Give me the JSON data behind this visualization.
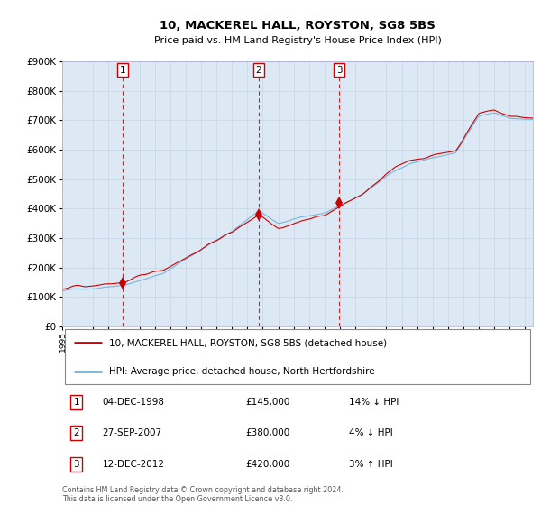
{
  "title": "10, MACKEREL HALL, ROYSTON, SG8 5BS",
  "subtitle": "Price paid vs. HM Land Registry's House Price Index (HPI)",
  "hpi_color": "#7ab4d8",
  "price_color": "#cc0000",
  "plot_bg": "#dce9f5",
  "ylim": [
    0,
    900000
  ],
  "yticks": [
    0,
    100000,
    200000,
    300000,
    400000,
    500000,
    600000,
    700000,
    800000,
    900000
  ],
  "sale_dates": [
    "1998-12-04",
    "2007-09-27",
    "2012-12-12"
  ],
  "sale_prices": [
    145000,
    380000,
    420000
  ],
  "sale_labels": [
    "1",
    "2",
    "3"
  ],
  "legend_price_label": "10, MACKEREL HALL, ROYSTON, SG8 5BS (detached house)",
  "legend_hpi_label": "HPI: Average price, detached house, North Hertfordshire",
  "table_rows": [
    {
      "num": "1",
      "date": "04-DEC-1998",
      "price": "£145,000",
      "hpi": "14% ↓ HPI"
    },
    {
      "num": "2",
      "date": "27-SEP-2007",
      "price": "£380,000",
      "hpi": "4% ↓ HPI"
    },
    {
      "num": "3",
      "date": "12-DEC-2012",
      "price": "£420,000",
      "hpi": "3% ↑ HPI"
    }
  ],
  "footnote": "Contains HM Land Registry data © Crown copyright and database right 2024.\nThis data is licensed under the Open Government Licence v3.0.",
  "vline_color": "#cc0000"
}
